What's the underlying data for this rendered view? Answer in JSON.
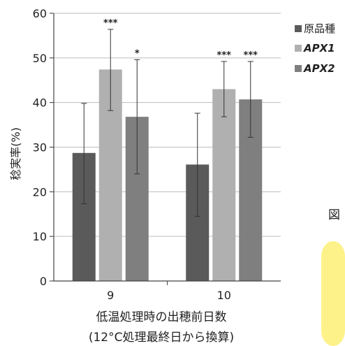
{
  "chart_data": {
    "type": "bar",
    "categories": [
      "9",
      "10"
    ],
    "series": [
      {
        "name": "原品種",
        "values": [
          28.7,
          26.1
        ],
        "err_low": [
          17.3,
          14.5
        ],
        "err_high": [
          39.8,
          37.6
        ],
        "sig": [
          "",
          ""
        ]
      },
      {
        "name": "APX1",
        "values": [
          47.4,
          43.0
        ],
        "err_low": [
          38.2,
          36.8
        ],
        "err_high": [
          56.4,
          49.2
        ],
        "sig": [
          "***",
          "***"
        ]
      },
      {
        "name": "APX2",
        "values": [
          36.8,
          40.7
        ],
        "err_low": [
          24.0,
          32.2
        ],
        "err_high": [
          49.6,
          49.2
        ],
        "sig": [
          "*",
          "***"
        ]
      }
    ],
    "ylabel": "稔実率(%)",
    "xlabel": [
      "低温処理時の出穂前日数",
      "(12°C処理最終日から換算)"
    ],
    "ylim": [
      0,
      60
    ],
    "yticks": [
      0,
      10,
      20,
      30,
      40,
      50,
      60
    ],
    "grid": true,
    "legend": "right",
    "colors": [
      "#5a5a5a",
      "#b0b0b0",
      "#7f7f7f"
    ]
  },
  "side_label": "図",
  "side_panel_color": "#fdf28a"
}
